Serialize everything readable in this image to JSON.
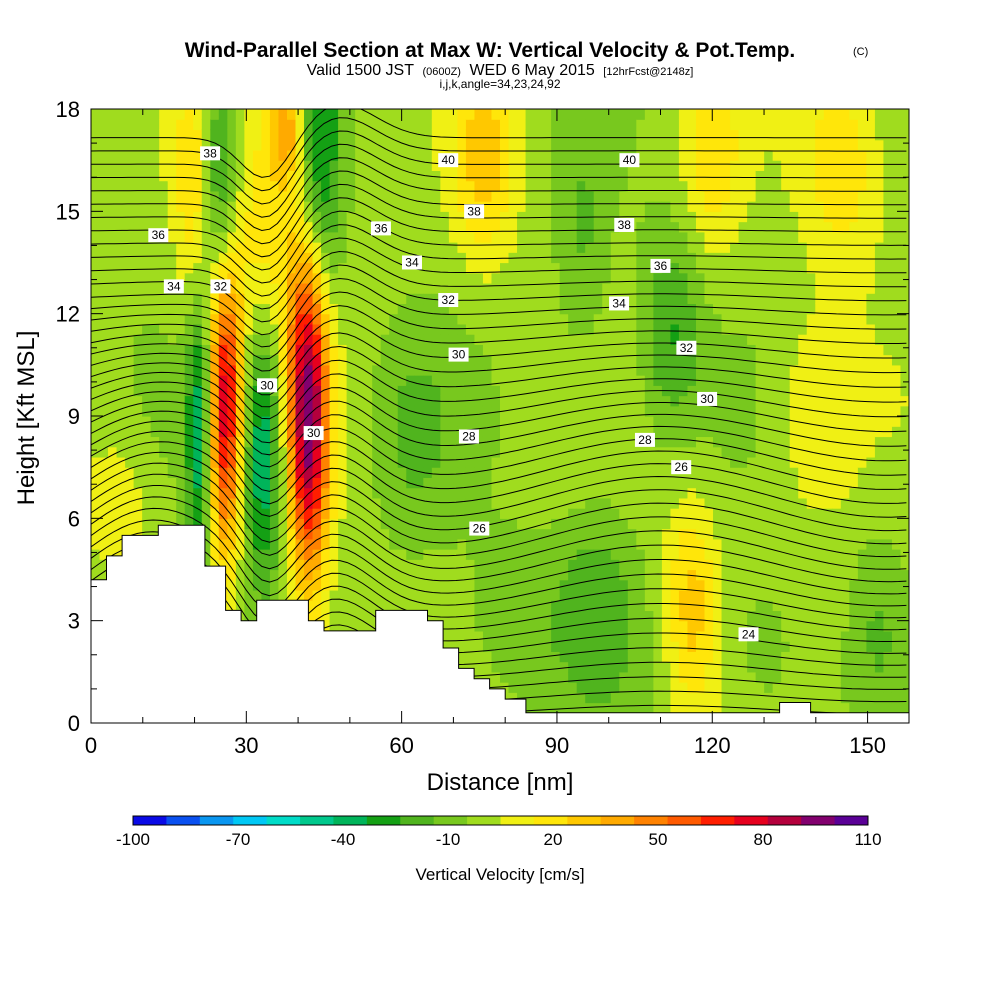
{
  "chart_data": {
    "type": "heatmap",
    "title": "Wind-Parallel Section at Max W: Vertical Velocity & Pot.Temp.",
    "title_mark": "(C)",
    "subtitle": {
      "valid": "Valid 1500 JST",
      "utc": "(0600Z)",
      "date": "WED 6 May 2015",
      "forecast": "[12hrFcst@2148z]",
      "indices": "i,j,k,angle=34,23,24,92"
    },
    "xlabel": "Distance [nm]",
    "ylabel": "Height [Kft MSL]",
    "xlim": [
      0,
      158
    ],
    "ylim": [
      0,
      18
    ],
    "xticks": [
      0,
      30,
      60,
      90,
      120,
      150
    ],
    "yticks": [
      0,
      3,
      6,
      9,
      12,
      15,
      18
    ],
    "colorbar": {
      "title": "Vertical Velocity [cm/s]",
      "min": -100,
      "max": 110,
      "step": 10,
      "labels": [
        -100,
        -70,
        -40,
        -10,
        20,
        50,
        80,
        110
      ],
      "colors": [
        "#0a0ae6",
        "#0a50f0",
        "#0a96f0",
        "#00c8f5",
        "#00dcc8",
        "#00c88c",
        "#00b45a",
        "#14a014",
        "#50b41e",
        "#78c81e",
        "#a0dc1e",
        "#f0f014",
        "#ffe60a",
        "#ffc800",
        "#ffaa00",
        "#ff8200",
        "#ff5a00",
        "#ff1e00",
        "#e6001e",
        "#b4003c",
        "#82006e",
        "#5a0096"
      ]
    },
    "velocity_features": [
      {
        "x": 26,
        "z": 9.5,
        "w": 3.5,
        "h": 4.5,
        "value": 90
      },
      {
        "x": 42,
        "z": 9.3,
        "w": 4.0,
        "h": 5.0,
        "value": 105
      },
      {
        "x": 33,
        "z": 8.0,
        "w": 4.5,
        "h": 4.0,
        "value": -45
      },
      {
        "x": 21,
        "z": 8.5,
        "w": 2.5,
        "h": 4.0,
        "value": -45
      },
      {
        "x": 25,
        "z": 15.5,
        "w": 3.5,
        "h": 4.0,
        "value": -40
      },
      {
        "x": 44,
        "z": 16.0,
        "w": 4.0,
        "h": 5.0,
        "value": -40
      },
      {
        "x": 20,
        "z": 15.5,
        "w": 4.0,
        "h": 3.5,
        "value": 25
      },
      {
        "x": 34,
        "z": 15.0,
        "w": 6.0,
        "h": 4.0,
        "value": 25
      },
      {
        "x": 38,
        "z": 17.5,
        "w": 3.0,
        "h": 1.5,
        "value": 40
      },
      {
        "x": 76,
        "z": 16.5,
        "w": 6.0,
        "h": 3.0,
        "value": 30
      },
      {
        "x": 95,
        "z": 14.0,
        "w": 5.0,
        "h": 3.5,
        "value": -15
      },
      {
        "x": 112,
        "z": 11.5,
        "w": 6.0,
        "h": 3.0,
        "value": -25
      },
      {
        "x": 116,
        "z": 3.5,
        "w": 5.0,
        "h": 3.0,
        "value": 30
      },
      {
        "x": 120,
        "z": 16.5,
        "w": 6.0,
        "h": 3.0,
        "value": 20
      },
      {
        "x": 145,
        "z": 16.5,
        "w": 8.0,
        "h": 3.0,
        "value": 25
      },
      {
        "x": 98,
        "z": 3.5,
        "w": 8.0,
        "h": 3.0,
        "value": -20
      },
      {
        "x": 82,
        "z": 3.0,
        "w": 10.0,
        "h": 2.5,
        "value": -12
      },
      {
        "x": 62,
        "z": 8.5,
        "w": 8.0,
        "h": 3.0,
        "value": -15
      },
      {
        "x": 5,
        "z": 6.5,
        "w": 6.0,
        "h": 2.0,
        "value": 15
      },
      {
        "x": 140,
        "z": 9.0,
        "w": 8.0,
        "h": 3.0,
        "value": 15
      },
      {
        "x": 130,
        "z": 2.0,
        "w": 6.0,
        "h": 2.0,
        "value": -12
      },
      {
        "x": 152,
        "z": 3.0,
        "w": 5.0,
        "h": 3.0,
        "value": -12
      }
    ],
    "terrain": [
      [
        0,
        4.2
      ],
      [
        3,
        4.9
      ],
      [
        6,
        5.5
      ],
      [
        13,
        5.8
      ],
      [
        22,
        4.6
      ],
      [
        26,
        3.3
      ],
      [
        29,
        3.0
      ],
      [
        32,
        3.6
      ],
      [
        42,
        3.0
      ],
      [
        45,
        2.7
      ],
      [
        55,
        3.3
      ],
      [
        65,
        3.0
      ],
      [
        68,
        2.2
      ],
      [
        71,
        1.6
      ],
      [
        74,
        1.3
      ],
      [
        77,
        1.0
      ],
      [
        80,
        0.7
      ],
      [
        84,
        0.3
      ],
      [
        133,
        0.6
      ],
      [
        139,
        0.3
      ],
      [
        158,
        0.3
      ]
    ],
    "contour_labels": [
      {
        "x": 23,
        "z": 16.7,
        "text": "38"
      },
      {
        "x": 13,
        "z": 14.3,
        "text": "36"
      },
      {
        "x": 16,
        "z": 12.8,
        "text": "34"
      },
      {
        "x": 25,
        "z": 12.8,
        "text": "32"
      },
      {
        "x": 34,
        "z": 9.9,
        "text": "30"
      },
      {
        "x": 43,
        "z": 8.5,
        "text": "30"
      },
      {
        "x": 69,
        "z": 16.5,
        "text": "40"
      },
      {
        "x": 74,
        "z": 15.0,
        "text": "38"
      },
      {
        "x": 56,
        "z": 14.5,
        "text": "36"
      },
      {
        "x": 62,
        "z": 13.5,
        "text": "34"
      },
      {
        "x": 69,
        "z": 12.4,
        "text": "32"
      },
      {
        "x": 71,
        "z": 10.8,
        "text": "30"
      },
      {
        "x": 73,
        "z": 8.4,
        "text": "28"
      },
      {
        "x": 75,
        "z": 5.7,
        "text": "26"
      },
      {
        "x": 104,
        "z": 16.5,
        "text": "40"
      },
      {
        "x": 103,
        "z": 14.6,
        "text": "38"
      },
      {
        "x": 110,
        "z": 13.4,
        "text": "36"
      },
      {
        "x": 102,
        "z": 12.3,
        "text": "34"
      },
      {
        "x": 115,
        "z": 11.0,
        "text": "32"
      },
      {
        "x": 119,
        "z": 9.5,
        "text": "30"
      },
      {
        "x": 107,
        "z": 8.3,
        "text": "28"
      },
      {
        "x": 114,
        "z": 7.5,
        "text": "26"
      },
      {
        "x": 127,
        "z": 2.6,
        "text": "24"
      }
    ]
  },
  "colors": {
    "contour": "#000000",
    "terrain": "#ffffff",
    "background": "#ffffff"
  }
}
